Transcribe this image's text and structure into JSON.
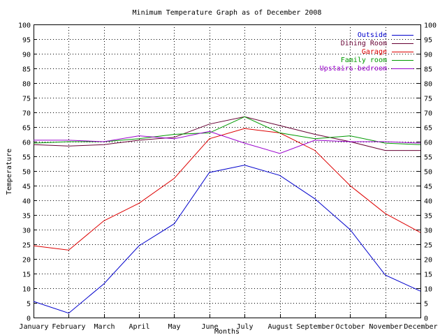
{
  "chart_data": {
    "type": "line",
    "title": "Minimum Temperature Graph as of December 2008",
    "xlabel": "Months",
    "ylabel": "Temperature",
    "ylim": [
      0,
      100
    ],
    "yticks": [
      0,
      5,
      10,
      15,
      20,
      25,
      30,
      35,
      40,
      45,
      50,
      55,
      60,
      65,
      70,
      75,
      80,
      85,
      90,
      95,
      100
    ],
    "grid": true,
    "legend_position": "top-right",
    "categories": [
      "January",
      "February",
      "March",
      "April",
      "May",
      "June",
      "July",
      "August",
      "September",
      "October",
      "November",
      "December"
    ],
    "series": [
      {
        "name": "Outside",
        "color": "#0000cc",
        "values": [
          5.5,
          1.5,
          11.5,
          24.5,
          32,
          49.5,
          52,
          48.5,
          40.5,
          30,
          14.5,
          9
        ]
      },
      {
        "name": "Dining Room",
        "color": "#660033",
        "values": [
          59,
          58.5,
          59,
          60.5,
          61.5,
          66,
          68.5,
          65.5,
          62.5,
          60,
          57,
          57
        ]
      },
      {
        "name": "Garage",
        "color": "#dd0000",
        "values": [
          24.5,
          23,
          33,
          39,
          47.5,
          61,
          64.5,
          63,
          57,
          45,
          35.5,
          29
        ]
      },
      {
        "name": "Family room",
        "color": "#009900",
        "values": [
          59.5,
          60,
          60,
          61,
          62.5,
          63,
          68.5,
          63,
          61,
          62,
          59.5,
          59
        ]
      },
      {
        "name": "Upstairs bedroom",
        "color": "#9900cc",
        "values": [
          60.5,
          60.5,
          60,
          62,
          61,
          63.5,
          59.5,
          56,
          60.5,
          60,
          60,
          59.5
        ]
      }
    ]
  }
}
